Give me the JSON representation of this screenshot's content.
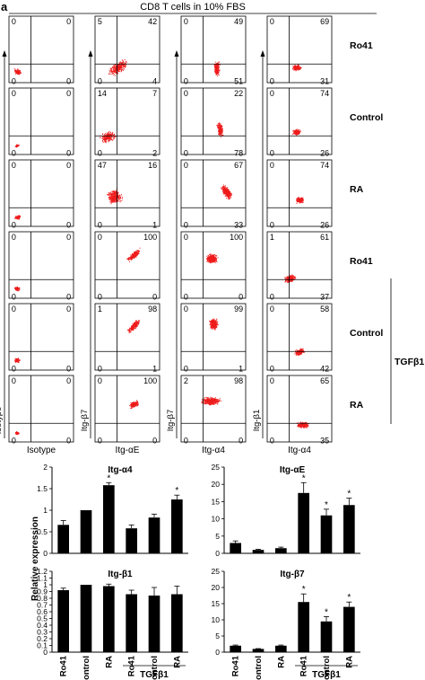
{
  "panel_letter": "a",
  "top_title": "CD8 T cells in 10% FBS",
  "colors": {
    "dots": "#ee1c1c",
    "bar": "#000000"
  },
  "flow": {
    "row_labels": [
      "Ro41",
      "Control",
      "RA",
      "Ro41",
      "Control",
      "RA"
    ],
    "group_label": "TGFβ1",
    "y_axis_labels": [
      "Isotype",
      "Itg-β7",
      "Itg-β7",
      "Itg-β1"
    ],
    "x_axis_labels": [
      "Isotype",
      "Itg-αE",
      "Itg-α4",
      "Itg-α4"
    ],
    "quadrants": [
      [
        [
          "0",
          "0",
          "0",
          "0"
        ],
        [
          "5",
          "42",
          "0",
          "4"
        ],
        [
          "0",
          "49",
          "0",
          "51"
        ],
        [
          "0",
          "69",
          "0",
          "31"
        ]
      ],
      [
        [
          "0",
          "0",
          "0",
          "0"
        ],
        [
          "14",
          "7",
          "0",
          "2"
        ],
        [
          "0",
          "22",
          "0",
          "78"
        ],
        [
          "0",
          "74",
          "0",
          "26"
        ]
      ],
      [
        [
          "0",
          "0",
          "0",
          "0"
        ],
        [
          "47",
          "16",
          "0",
          "1"
        ],
        [
          "0",
          "67",
          "0",
          "33"
        ],
        [
          "0",
          "74",
          "0",
          "26"
        ]
      ],
      [
        [
          "0",
          "0",
          "0",
          "0"
        ],
        [
          "0",
          "100",
          "0",
          "0"
        ],
        [
          "0",
          "100",
          "0",
          "0"
        ],
        [
          "1",
          "61",
          "0",
          "37"
        ]
      ],
      [
        [
          "0",
          "0",
          "0",
          "0"
        ],
        [
          "1",
          "98",
          "0",
          "1"
        ],
        [
          "0",
          "99",
          "0",
          "1"
        ],
        [
          "0",
          "58",
          "0",
          "42"
        ]
      ],
      [
        [
          "0",
          "0",
          "0",
          "0"
        ],
        [
          "0",
          "100",
          "0",
          "0"
        ],
        [
          "2",
          "98",
          "0",
          "0"
        ],
        [
          "0",
          "65",
          "0",
          "35"
        ]
      ]
    ]
  },
  "bar_ylabel": "Relative expression",
  "bar_xlabels": [
    "Ro41",
    "Control",
    "RA",
    "Ro41",
    "Control",
    "RA"
  ],
  "bar_group_label": "TGFβ1",
  "significance_marker": "*",
  "chart_data": [
    {
      "type": "bar",
      "title": "Itg-α4",
      "categories": [
        "Ro41",
        "Control",
        "RA",
        "Ro41",
        "Control",
        "RA"
      ],
      "values": [
        0.66,
        1.0,
        1.58,
        0.58,
        0.83,
        1.25
      ],
      "errors": [
        0.1,
        0.0,
        0.06,
        0.08,
        0.08,
        0.1
      ],
      "significant": [
        false,
        false,
        true,
        false,
        false,
        true
      ],
      "ylim": [
        0,
        2
      ],
      "yticks": [
        "0",
        "0.5",
        "1",
        "1.5",
        "2"
      ]
    },
    {
      "type": "bar",
      "title": "Itg-αE",
      "categories": [
        "Ro41",
        "Control",
        "RA",
        "Ro41",
        "Control",
        "RA"
      ],
      "values": [
        3,
        1,
        1.5,
        17.5,
        11,
        14
      ],
      "errors": [
        0.6,
        0.2,
        0.3,
        3.0,
        1.8,
        2.0
      ],
      "significant": [
        false,
        false,
        false,
        true,
        true,
        true
      ],
      "ylim": [
        0,
        25
      ],
      "yticks": [
        "0",
        "5",
        "10",
        "15",
        "20",
        "25"
      ]
    },
    {
      "type": "bar",
      "title": "Itg-β1",
      "categories": [
        "Ro41",
        "Control",
        "RA",
        "Ro41",
        "Control",
        "RA"
      ],
      "values": [
        0.92,
        1.0,
        0.98,
        0.86,
        0.84,
        0.86
      ],
      "errors": [
        0.03,
        0.0,
        0.03,
        0.06,
        0.12,
        0.12
      ],
      "significant": [
        false,
        false,
        false,
        false,
        false,
        false
      ],
      "ylim": [
        0,
        1.2
      ],
      "yticks": [
        "0",
        "0.1",
        "0.2",
        "0.3",
        "0.4",
        "0.5",
        "0.6",
        "0.7",
        "0.8",
        "0.9",
        "1",
        "1.1",
        "1.2"
      ]
    },
    {
      "type": "bar",
      "title": "Itg-β7",
      "categories": [
        "Ro41",
        "Control",
        "RA",
        "Ro41",
        "Control",
        "RA"
      ],
      "values": [
        2,
        1,
        2,
        15.5,
        9.5,
        14
      ],
      "errors": [
        0.2,
        0.1,
        0.2,
        2.5,
        1.5,
        1.5
      ],
      "significant": [
        false,
        false,
        false,
        true,
        true,
        true
      ],
      "ylim": [
        0,
        25
      ],
      "yticks": [
        "0",
        "5",
        "10",
        "15",
        "20",
        "25"
      ]
    }
  ]
}
